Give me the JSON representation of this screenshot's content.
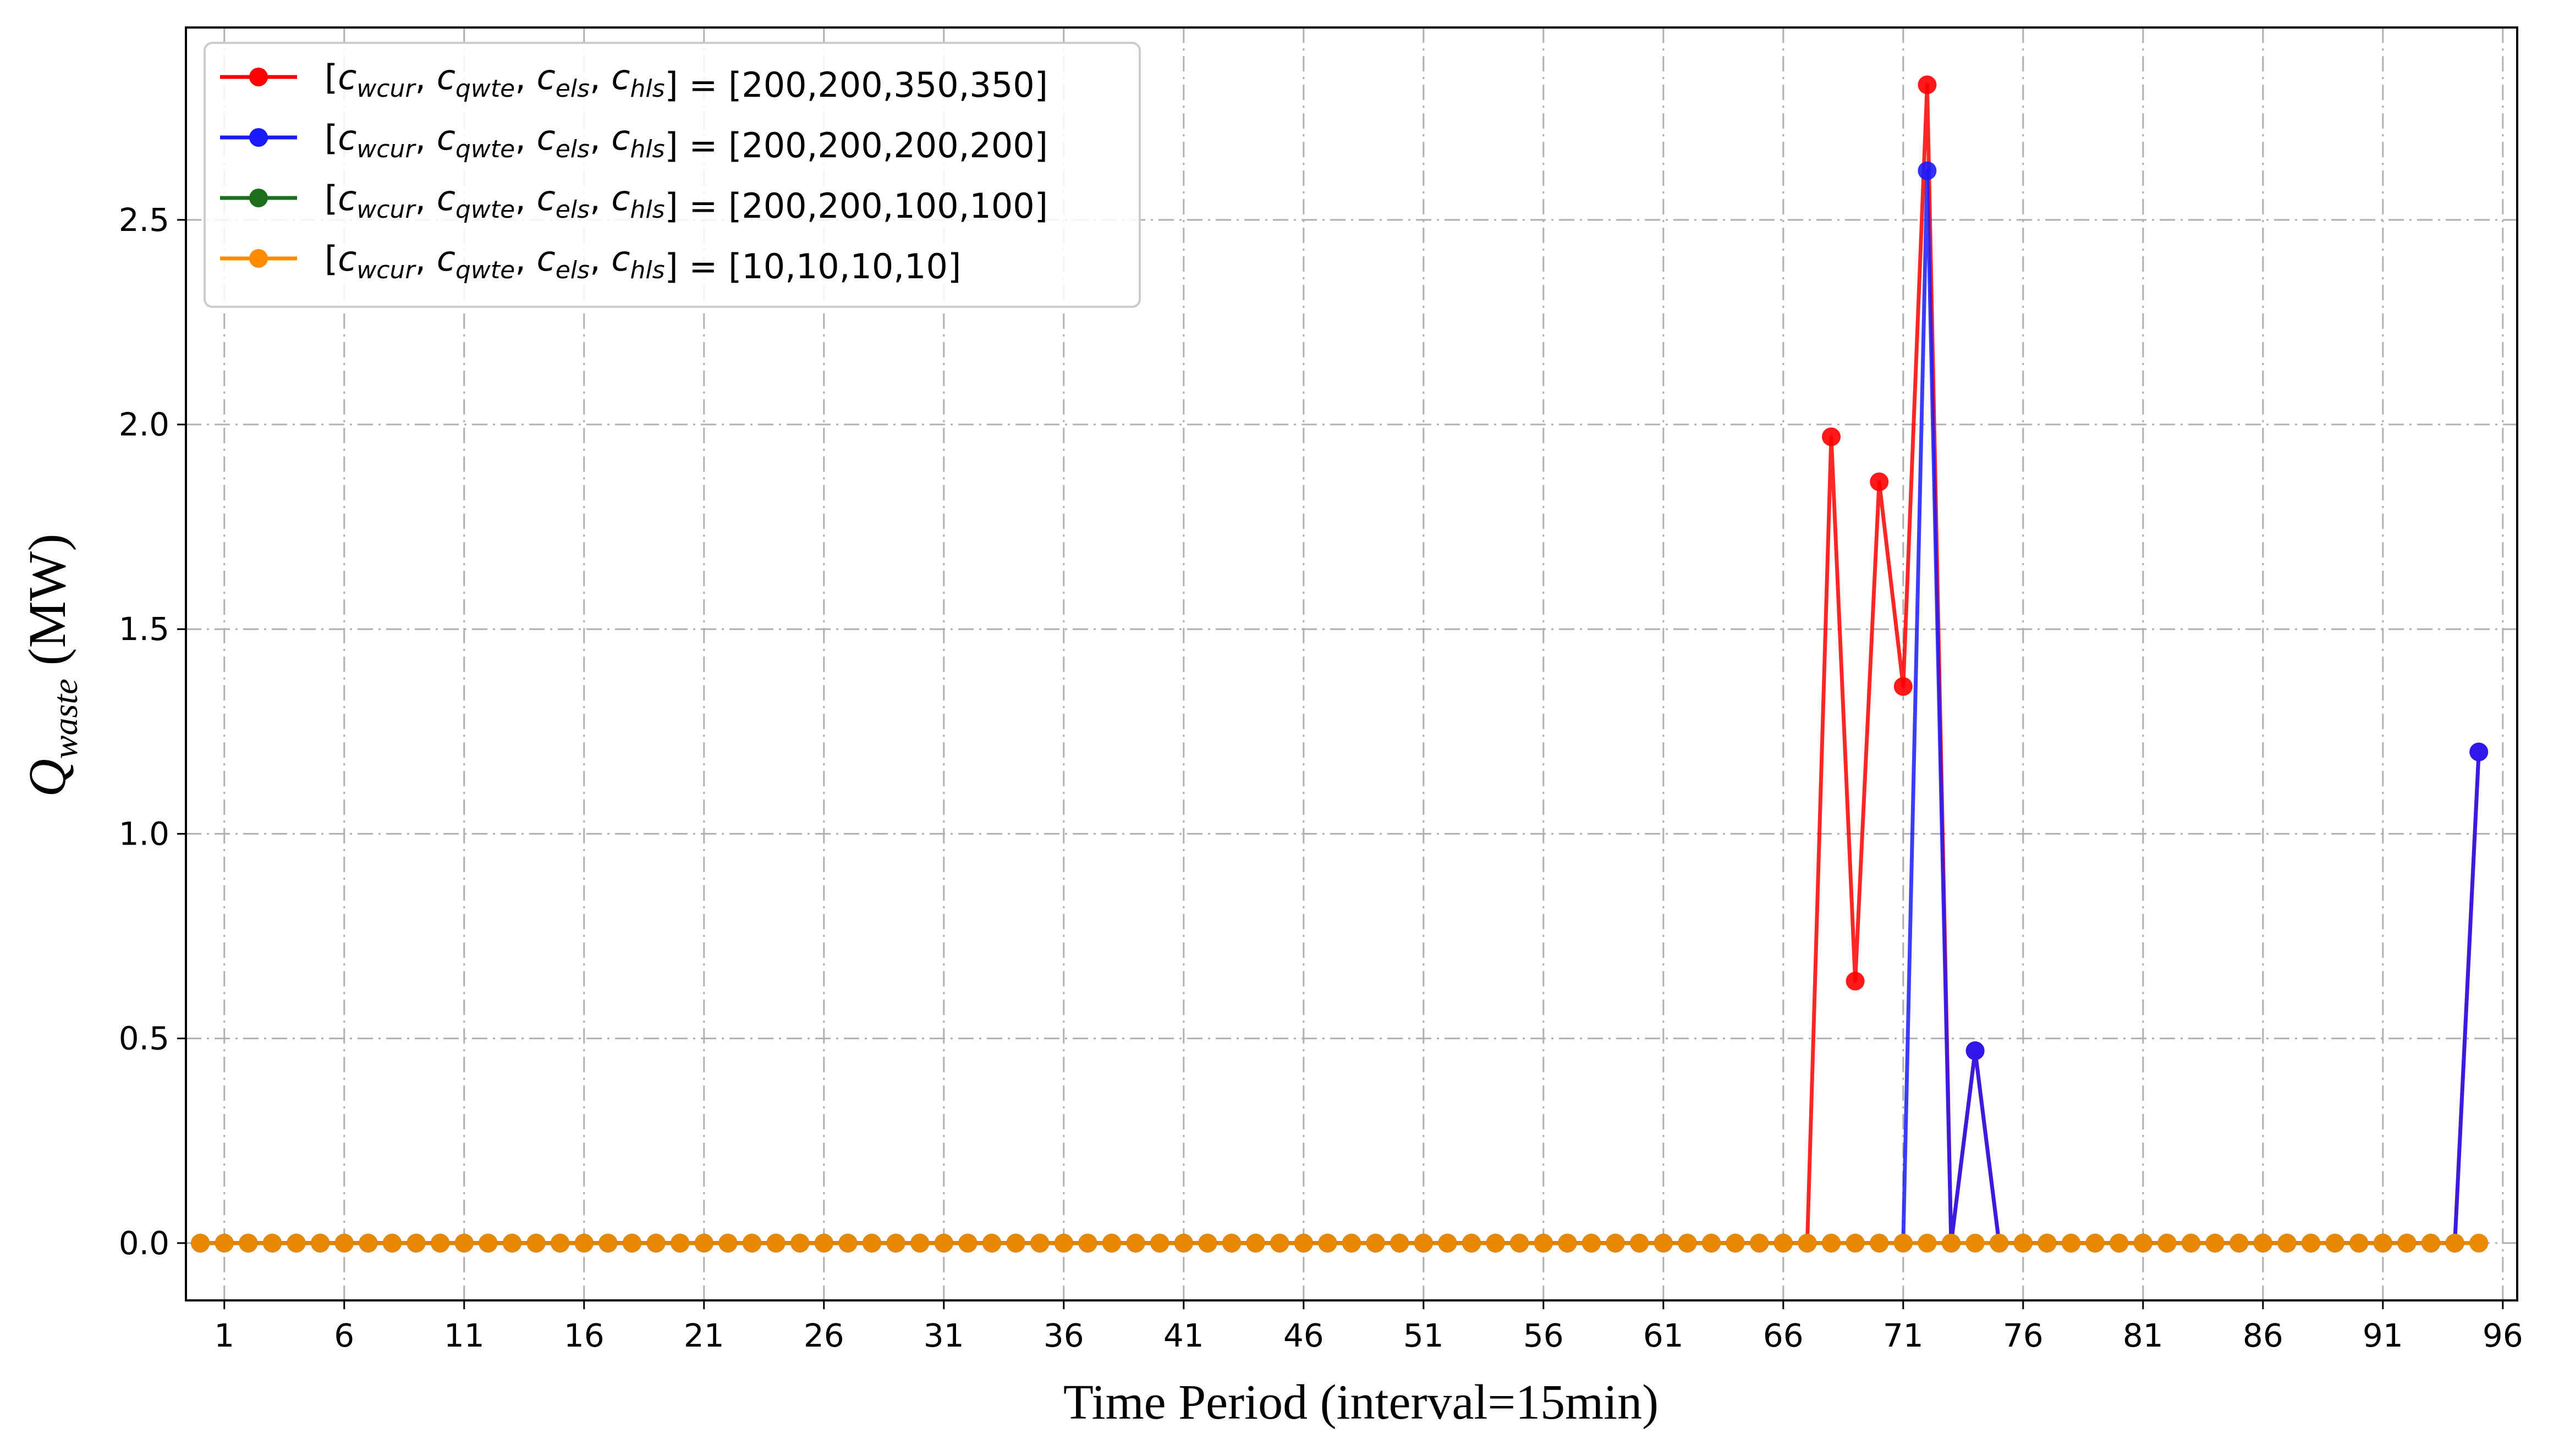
{
  "chart_data": {
    "type": "line",
    "title": "",
    "xlabel": "Time Period (interval=15min)",
    "ylabel": {
      "base": "Q",
      "sub": "waste",
      "unit": " (MW)"
    },
    "xlim": [
      -0.6,
      96.6
    ],
    "ylim": [
      -0.14,
      2.97
    ],
    "x": [
      0,
      1,
      2,
      3,
      4,
      5,
      6,
      7,
      8,
      9,
      10,
      11,
      12,
      13,
      14,
      15,
      16,
      17,
      18,
      19,
      20,
      21,
      22,
      23,
      24,
      25,
      26,
      27,
      28,
      29,
      30,
      31,
      32,
      33,
      34,
      35,
      36,
      37,
      38,
      39,
      40,
      41,
      42,
      43,
      44,
      45,
      46,
      47,
      48,
      49,
      50,
      51,
      52,
      53,
      54,
      55,
      56,
      57,
      58,
      59,
      60,
      61,
      62,
      63,
      64,
      65,
      66,
      67,
      68,
      69,
      70,
      71,
      72,
      73,
      74,
      75,
      76,
      77,
      78,
      79,
      80,
      81,
      82,
      83,
      84,
      85,
      86,
      87,
      88,
      89,
      90,
      91,
      92,
      93,
      94,
      95
    ],
    "xticks": [
      1,
      6,
      11,
      16,
      21,
      26,
      31,
      36,
      41,
      46,
      51,
      56,
      61,
      66,
      71,
      76,
      81,
      86,
      91,
      96
    ],
    "yticks": [
      0.0,
      0.5,
      1.0,
      1.5,
      2.0,
      2.5
    ],
    "ytick_labels": [
      "0.0",
      "0.5",
      "1.0",
      "1.5",
      "2.0",
      "2.5"
    ],
    "grid": true,
    "legend_position": "top-left",
    "series": [
      {
        "label_prefix": "[",
        "label_vars": [
          "wcur",
          "qwte",
          "els",
          "hls"
        ],
        "label_values": "] = [200,200,350,350]",
        "color": "#ff0000",
        "values": [
          0,
          0,
          0,
          0,
          0,
          0,
          0,
          0,
          0,
          0,
          0,
          0,
          0,
          0,
          0,
          0,
          0,
          0,
          0,
          0,
          0,
          0,
          0,
          0,
          0,
          0,
          0,
          0,
          0,
          0,
          0,
          0,
          0,
          0,
          0,
          0,
          0,
          0,
          0,
          0,
          0,
          0,
          0,
          0,
          0,
          0,
          0,
          0,
          0,
          0,
          0,
          0,
          0,
          0,
          0,
          0,
          0,
          0,
          0,
          0,
          0,
          0,
          0,
          0,
          0,
          0,
          0,
          0,
          1.97,
          0.64,
          1.86,
          1.36,
          2.83,
          0,
          0.47,
          0,
          0,
          0,
          0,
          0,
          0,
          0,
          0,
          0,
          0,
          0,
          0,
          0,
          0,
          0,
          0,
          0,
          0,
          0,
          0,
          1.2
        ]
      },
      {
        "label_prefix": "[",
        "label_vars": [
          "wcur",
          "qwte",
          "els",
          "hls"
        ],
        "label_values": "] = [200,200,200,200]",
        "color": "#1a1aff",
        "values": [
          0,
          0,
          0,
          0,
          0,
          0,
          0,
          0,
          0,
          0,
          0,
          0,
          0,
          0,
          0,
          0,
          0,
          0,
          0,
          0,
          0,
          0,
          0,
          0,
          0,
          0,
          0,
          0,
          0,
          0,
          0,
          0,
          0,
          0,
          0,
          0,
          0,
          0,
          0,
          0,
          0,
          0,
          0,
          0,
          0,
          0,
          0,
          0,
          0,
          0,
          0,
          0,
          0,
          0,
          0,
          0,
          0,
          0,
          0,
          0,
          0,
          0,
          0,
          0,
          0,
          0,
          0,
          0,
          0,
          0,
          0,
          0,
          2.62,
          0,
          0.47,
          0,
          0,
          0,
          0,
          0,
          0,
          0,
          0,
          0,
          0,
          0,
          0,
          0,
          0,
          0,
          0,
          0,
          0,
          0,
          0,
          1.2
        ]
      },
      {
        "label_prefix": "[",
        "label_vars": [
          "wcur",
          "qwte",
          "els",
          "hls"
        ],
        "label_values": "] = [200,200,100,100]",
        "color": "#1e6e1e",
        "values": [
          0,
          0,
          0,
          0,
          0,
          0,
          0,
          0,
          0,
          0,
          0,
          0,
          0,
          0,
          0,
          0,
          0,
          0,
          0,
          0,
          0,
          0,
          0,
          0,
          0,
          0,
          0,
          0,
          0,
          0,
          0,
          0,
          0,
          0,
          0,
          0,
          0,
          0,
          0,
          0,
          0,
          0,
          0,
          0,
          0,
          0,
          0,
          0,
          0,
          0,
          0,
          0,
          0,
          0,
          0,
          0,
          0,
          0,
          0,
          0,
          0,
          0,
          0,
          0,
          0,
          0,
          0,
          0,
          0,
          0,
          0,
          0,
          0,
          0,
          0,
          0,
          0,
          0,
          0,
          0,
          0,
          0,
          0,
          0,
          0,
          0,
          0,
          0,
          0,
          0,
          0,
          0,
          0,
          0,
          0,
          0
        ]
      },
      {
        "label_prefix": "[",
        "label_vars": [
          "wcur",
          "qwte",
          "els",
          "hls"
        ],
        "label_values": "] = [10,10,10,10]",
        "color": "#ff8c00",
        "values": [
          0,
          0,
          0,
          0,
          0,
          0,
          0,
          0,
          0,
          0,
          0,
          0,
          0,
          0,
          0,
          0,
          0,
          0,
          0,
          0,
          0,
          0,
          0,
          0,
          0,
          0,
          0,
          0,
          0,
          0,
          0,
          0,
          0,
          0,
          0,
          0,
          0,
          0,
          0,
          0,
          0,
          0,
          0,
          0,
          0,
          0,
          0,
          0,
          0,
          0,
          0,
          0,
          0,
          0,
          0,
          0,
          0,
          0,
          0,
          0,
          0,
          0,
          0,
          0,
          0,
          0,
          0,
          0,
          0,
          0,
          0,
          0,
          0,
          0,
          0,
          0,
          0,
          0,
          0,
          0,
          0,
          0,
          0,
          0,
          0,
          0,
          0,
          0,
          0,
          0,
          0,
          0,
          0,
          0,
          0,
          0
        ]
      }
    ]
  }
}
